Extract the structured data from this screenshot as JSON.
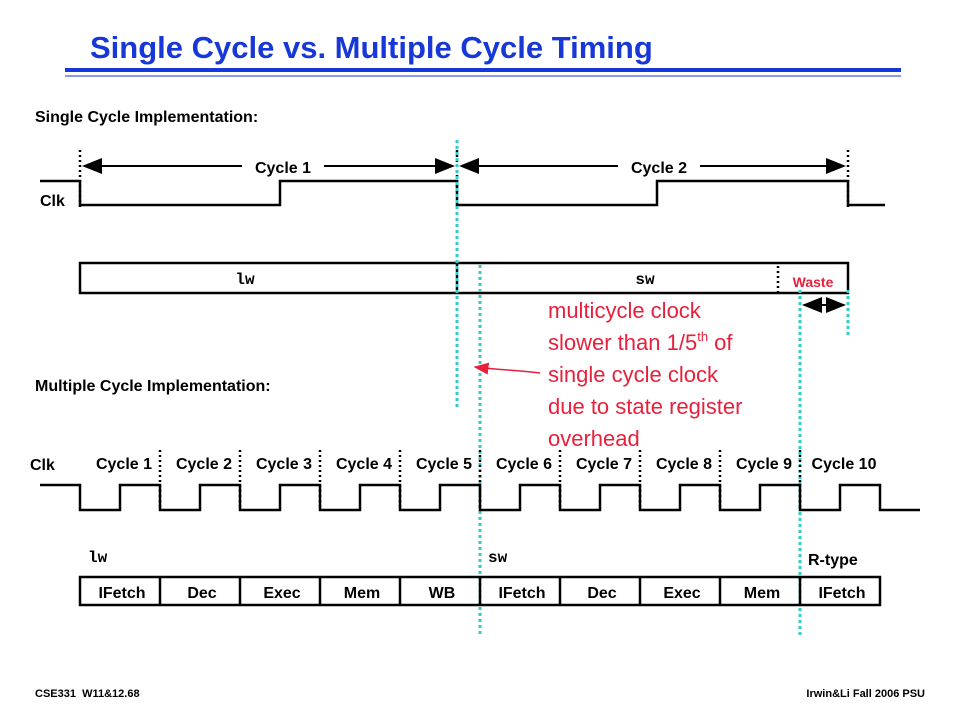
{
  "title": "Single Cycle vs. Multiple Cycle Timing",
  "single": {
    "heading": "Single Cycle Implementation:",
    "clk": "Clk",
    "cycles": [
      "Cycle 1",
      "Cycle 2"
    ],
    "instructions": [
      "lw",
      "sw"
    ],
    "waste": "Waste"
  },
  "annotation": {
    "lines": [
      {
        "text": "multicycle clock"
      },
      {
        "text": "slower than 1/5",
        "sup": "th",
        "rest": " of"
      },
      {
        "text": "single cycle clock"
      },
      {
        "text": "due to state register"
      },
      {
        "text": "overhead"
      }
    ]
  },
  "multi": {
    "heading": "Multiple Cycle Implementation:",
    "clk": "Clk",
    "cycles": [
      "Cycle 1",
      "Cycle 2",
      "Cycle 3",
      "Cycle 4",
      "Cycle 5",
      "Cycle 6",
      "Cycle 7",
      "Cycle 8",
      "Cycle 9",
      "Cycle 10"
    ],
    "instructions": [
      "lw",
      "sw",
      "R-type"
    ],
    "stages": [
      "IFetch",
      "Dec",
      "Exec",
      "Mem",
      "WB",
      "IFetch",
      "Dec",
      "Exec",
      "Mem",
      "IFetch"
    ]
  },
  "footer": {
    "left": "CSE331  W11&12.68",
    "right": "Irwin&Li Fall 2006 PSU"
  }
}
